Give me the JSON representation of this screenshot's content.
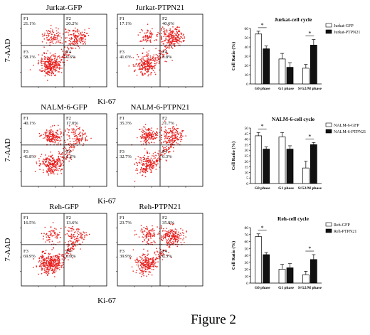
{
  "figure_label": "Figure 2",
  "colors": {
    "dots": "#e8201e",
    "ctrl_fill": "#ffffff",
    "ptpn_fill": "#111111",
    "axis": "#000000"
  },
  "rows": [
    {
      "ylabel": "7-AAD",
      "xlabel": "Ki-67",
      "plots": [
        {
          "title": "Jurkat-GFP",
          "quadrants": {
            "F1": "21.1%",
            "F2": "20.2%",
            "F3": "58.1%",
            "F4": "0.6%"
          }
        },
        {
          "title": "Jurkat-PTPN21",
          "quadrants": {
            "F1": "17.1%",
            "F2": "40.6%",
            "F3": "41.6%",
            "F4": "0.8%"
          }
        }
      ]
    },
    {
      "ylabel": "7-AAD",
      "xlabel": "Ki-67",
      "plots": [
        {
          "title": "NALM-6-GFP",
          "quadrants": {
            "F1": "40.1%",
            "F2": "17.0%",
            "F3": "41.8%",
            "F4": "1.2%"
          }
        },
        {
          "title": "NALM-6-PTPN21",
          "quadrants": {
            "F1": "35.3%",
            "F2": "31.7%",
            "F3": "32.7%",
            "F4": "0.3%"
          }
        }
      ]
    },
    {
      "ylabel": "7-AAD",
      "xlabel": "Ki-67",
      "plots": [
        {
          "title": "Reh-GFP",
          "quadrants": {
            "F1": "16.5%",
            "F2": "13.6%",
            "F3": "69.9%",
            "F4": "0.0%"
          }
        },
        {
          "title": "Reh-PTPN21",
          "quadrants": {
            "F1": "23.7%",
            "F2": "35.9%",
            "F3": "39.9%",
            "F4": "0.5%"
          }
        }
      ]
    }
  ],
  "chart_data": [
    {
      "type": "bar",
      "title": "Jurkat-cell cycle",
      "ylabel": "Cell Ratio (%)",
      "categories": [
        "G0 phase",
        "G1 phase",
        "S/G2/M phase"
      ],
      "ylim": [
        0,
        60
      ],
      "yticks": [
        "0",
        "10",
        "20",
        "30",
        "40",
        "50",
        "60"
      ],
      "series": [
        {
          "name": "Jurkat-GFP",
          "values": [
            54,
            27,
            17
          ],
          "errors": [
            3,
            6,
            4
          ]
        },
        {
          "name": "Jurkat-PTPN21",
          "values": [
            38,
            18,
            42
          ],
          "errors": [
            3,
            5,
            6
          ]
        }
      ],
      "significance": [
        {
          "category": "G0 phase",
          "text": "*"
        },
        {
          "category": "S/G2/M phase",
          "text": "*"
        }
      ]
    },
    {
      "type": "bar",
      "title": "NALM-6-cell cycle",
      "ylabel": "Cell Ratio (%)",
      "categories": [
        "G0 phase",
        "G1 phase",
        "S/G2/M phase"
      ],
      "ylim": [
        0,
        50
      ],
      "yticks": [
        "0",
        "5",
        "10",
        "15",
        "20",
        "25",
        "30",
        "35",
        "40",
        "45",
        "50"
      ],
      "series": [
        {
          "name": "NALM-6-GFP",
          "values": [
            43,
            42,
            14
          ],
          "errors": [
            3,
            4,
            6
          ]
        },
        {
          "name": "NALM-6-PTPN21",
          "values": [
            31,
            31,
            35
          ],
          "errors": [
            2,
            3,
            2
          ]
        }
      ],
      "significance": [
        {
          "category": "G0 phase",
          "text": "*"
        },
        {
          "category": "S/G2/M phase",
          "text": "*"
        }
      ]
    },
    {
      "type": "bar",
      "title": "Reh-cell cycle",
      "ylabel": "Cell Ratio (%)",
      "categories": [
        "G0 phase",
        "G1 phase",
        "S/G2/M phase"
      ],
      "ylim": [
        0,
        80
      ],
      "yticks": [
        "0",
        "10",
        "20",
        "30",
        "40",
        "50",
        "60",
        "70",
        "80"
      ],
      "series": [
        {
          "name": "Reh-GFP",
          "values": [
            67,
            20,
            12
          ],
          "errors": [
            4,
            7,
            5
          ]
        },
        {
          "name": "Reh-PTPN21",
          "values": [
            41,
            22,
            34
          ],
          "errors": [
            3,
            6,
            7
          ]
        }
      ],
      "significance": [
        {
          "category": "G0 phase",
          "text": "*"
        },
        {
          "category": "S/G2/M phase",
          "text": "*"
        }
      ]
    }
  ]
}
